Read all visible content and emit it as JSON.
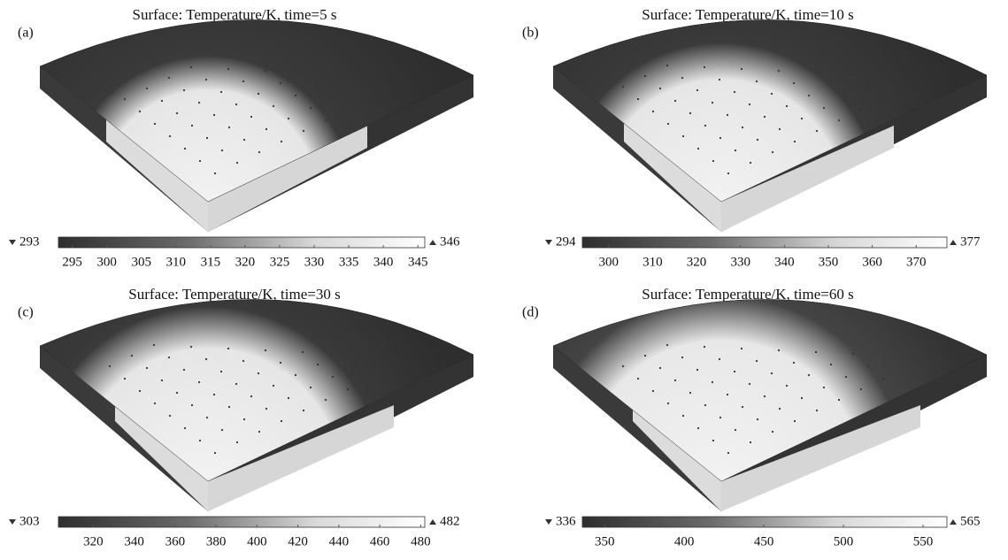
{
  "panels": [
    {
      "label": "(a)",
      "title": "Surface: Temperature/K, time=5 s",
      "min": 293,
      "max": 346,
      "ticks": [
        295,
        300,
        305,
        310,
        315,
        320,
        325,
        330,
        335,
        340,
        345
      ]
    },
    {
      "label": "(b)",
      "title": "Surface: Temperature/K, time=10 s",
      "min": 294,
      "max": 377,
      "ticks": [
        300,
        310,
        320,
        330,
        340,
        350,
        360,
        370
      ]
    },
    {
      "label": "(c)",
      "title": "Surface: Temperature/K, time=30 s",
      "min": 303,
      "max": 482,
      "ticks": [
        320,
        340,
        360,
        380,
        400,
        420,
        440,
        460,
        480
      ]
    },
    {
      "label": "(d)",
      "title": "Surface: Temperature/K, time=60 s",
      "min": 336,
      "max": 565,
      "ticks": [
        350,
        400,
        450,
        500,
        550
      ]
    }
  ]
}
